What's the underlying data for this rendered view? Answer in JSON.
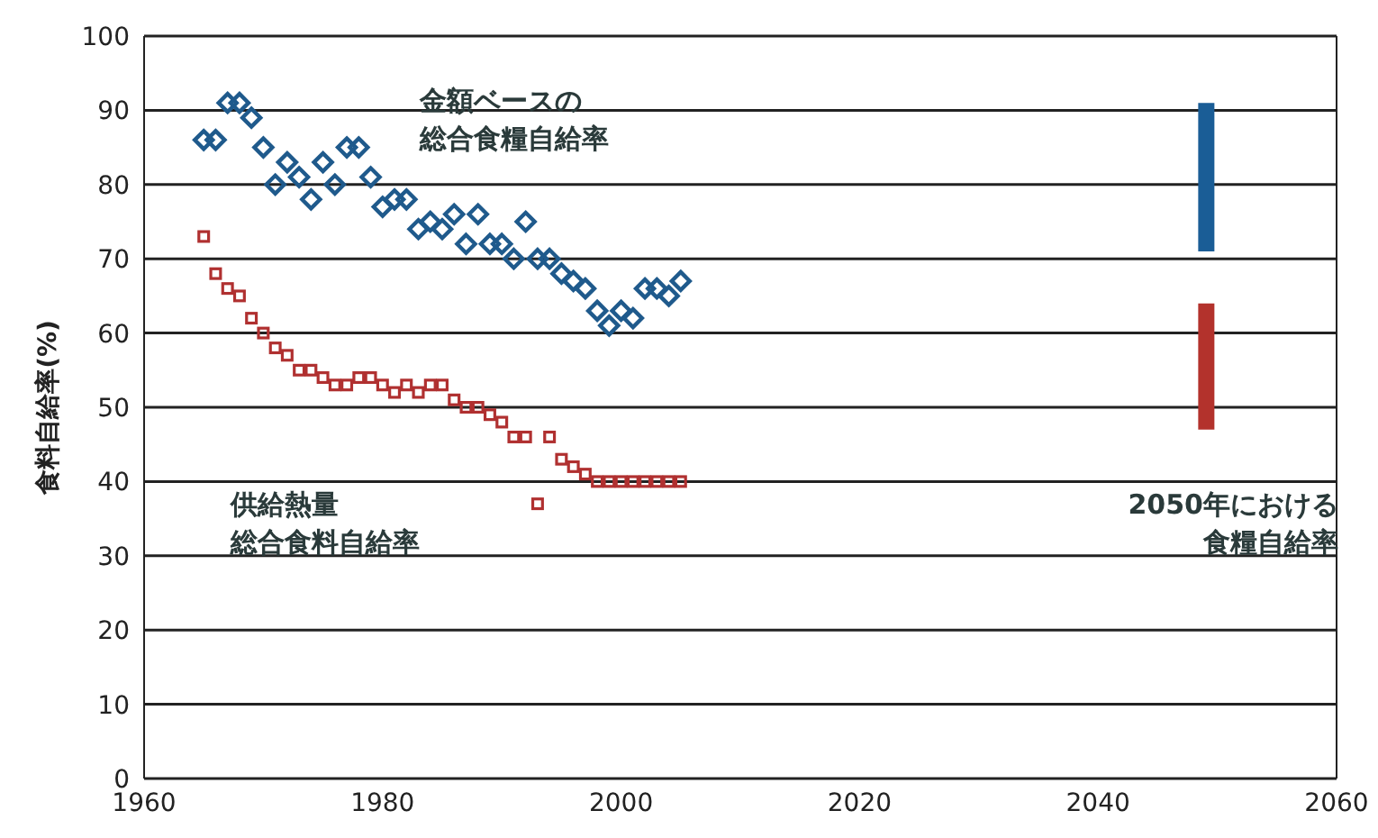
{
  "chart_data": {
    "type": "scatter",
    "ylabel": "食料自給率(%)",
    "xlim": [
      1960,
      2060
    ],
    "xticks": [
      1960,
      1980,
      2000,
      2020,
      2040,
      2060
    ],
    "ylim": [
      0,
      100
    ],
    "yticks": [
      0,
      10,
      20,
      30,
      40,
      50,
      60,
      70,
      80,
      90,
      100
    ],
    "grid": "y",
    "x": [
      1965,
      1966,
      1967,
      1968,
      1969,
      1970,
      1971,
      1972,
      1973,
      1974,
      1975,
      1976,
      1977,
      1978,
      1979,
      1980,
      1981,
      1982,
      1983,
      1984,
      1985,
      1986,
      1987,
      1988,
      1989,
      1990,
      1991,
      1992,
      1993,
      1994,
      1995,
      1996,
      1997,
      1998,
      1999,
      2000,
      2001,
      2002,
      2003,
      2004,
      2005
    ],
    "series": [
      {
        "marker": "diamond",
        "color": "#1f5a8c",
        "values": [
          86,
          86,
          91,
          91,
          89,
          85,
          80,
          83,
          81,
          78,
          83,
          80,
          85,
          85,
          81,
          77,
          78,
          78,
          74,
          75,
          74,
          76,
          72,
          76,
          72,
          72,
          70,
          75,
          70,
          70,
          68,
          67,
          66,
          63,
          61,
          63,
          62,
          66,
          66,
          65,
          67
        ]
      },
      {
        "marker": "square",
        "color": "#b03030",
        "values": [
          73,
          68,
          66,
          65,
          62,
          60,
          58,
          57,
          55,
          55,
          54,
          53,
          53,
          54,
          54,
          53,
          52,
          53,
          52,
          53,
          53,
          51,
          50,
          50,
          49,
          48,
          46,
          46,
          37,
          46,
          43,
          42,
          41,
          40,
          40,
          40,
          40,
          40,
          40,
          40,
          40
        ]
      },
      {
        "type": "bar",
        "color": "#1a5d96",
        "x": [
          2049
        ],
        "base": [
          71
        ],
        "values": [
          20
        ]
      },
      {
        "type": "bar",
        "color": "#b3322c",
        "x": [
          2049
        ],
        "base": [
          47
        ],
        "values": [
          17
        ]
      }
    ],
    "annotations": [
      "金額ベースの総合食糧自給率",
      "供給熱量総合食料自給率",
      "2050年における食糧自給率"
    ]
  }
}
